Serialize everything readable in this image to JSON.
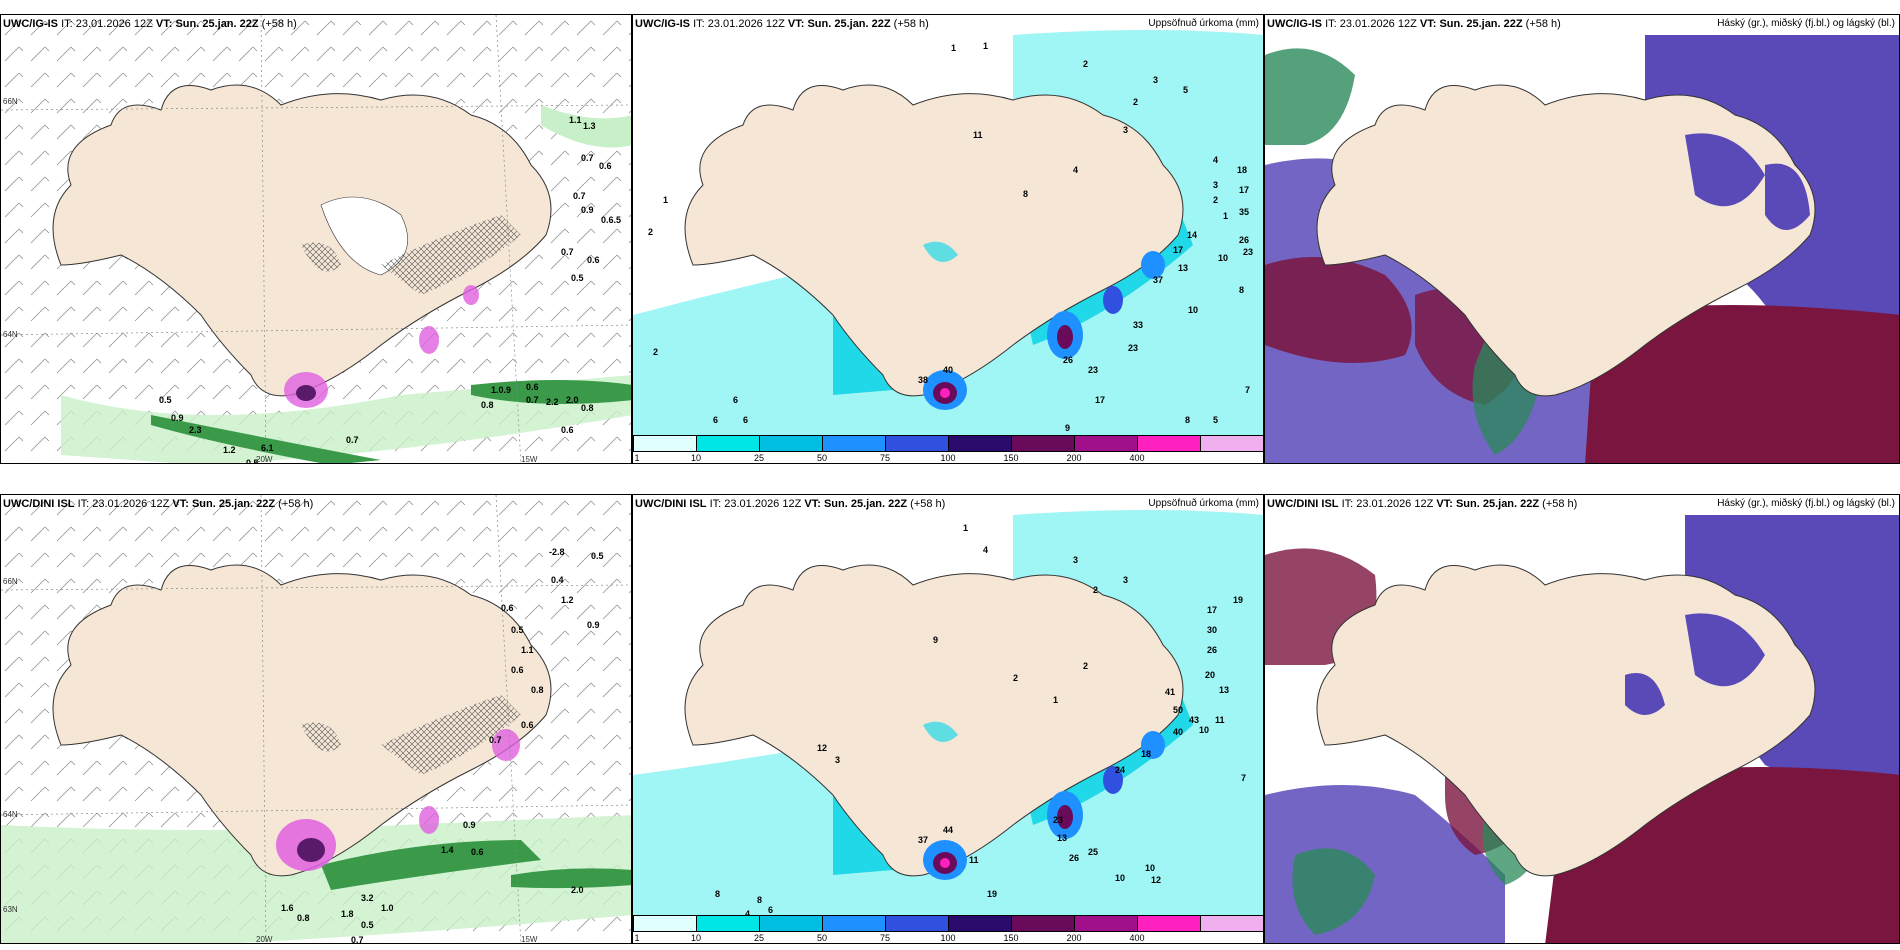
{
  "rows": [
    {
      "model": "UWC/IG-IS",
      "it_label": "IT:",
      "it_value": "23.01.2026 12Z",
      "vt_label": "VT:",
      "vt_value": "Sun. 25.jan. 22Z",
      "lead": "(+58 h)",
      "panel2_title": "Uppsöfnuð úrkoma (mm)",
      "panel3_title": "Háský (gr.), miðský (fj.bl.) og lágský (bl.)",
      "wind_values": [
        "1.1",
        "1.3",
        "0.7",
        "0.6",
        "0.7",
        "0.9",
        "0.6.5",
        "0.7",
        "0.6",
        "0.5",
        "0.5",
        "0.9",
        "2.3",
        "1.2",
        "6.1",
        "0.5",
        "0.7",
        "1.0.9",
        "0.6",
        "0.7",
        "2.2",
        "2.0",
        "0.8",
        "0.8",
        "0.6"
      ],
      "precip_values": [
        "1",
        "1",
        "2",
        "3",
        "5",
        "4",
        "3",
        "2",
        "1",
        "18",
        "17",
        "35",
        "26",
        "23",
        "14",
        "17",
        "23",
        "37",
        "13",
        "10",
        "10",
        "8",
        "33",
        "26",
        "23",
        "17",
        "9",
        "40",
        "38",
        "7",
        "5",
        "8",
        "6",
        "6",
        "6",
        "2",
        "1",
        "2",
        "11",
        "8",
        "4",
        "3",
        "2"
      ]
    },
    {
      "model": "UWC/DINI ISL",
      "it_label": "IT:",
      "it_value": "23.01.2026 12Z",
      "vt_label": "VT:",
      "vt_value": "Sun. 25.jan. 22Z",
      "lead": "(+58 h)",
      "panel2_title": "Uppsöfnuð úrkoma (mm)",
      "panel3_title": "Háský (gr.), miðský (fj.bl.) og lágský (bl.)",
      "wind_values": [
        "-2.8",
        "0.5",
        "0.4",
        "1.2",
        "0.9",
        "0.6",
        "0.5",
        "1.1",
        "0.6",
        "0.8",
        "0.6",
        "0.7",
        "0.9",
        "1.4",
        "0.6",
        "2.0",
        "1.8",
        "3.2",
        "1.0",
        "0.5",
        "0.7",
        "1.6",
        "0.8"
      ],
      "precip_values": [
        "1",
        "4",
        "3",
        "2",
        "3",
        "19",
        "17",
        "30",
        "26",
        "20",
        "13",
        "11",
        "10",
        "7",
        "41",
        "50",
        "43",
        "40",
        "18",
        "24",
        "23",
        "13",
        "25",
        "26",
        "10",
        "12",
        "10",
        "44",
        "37",
        "11",
        "19",
        "8",
        "8",
        "4",
        "6",
        "3",
        "12",
        "9",
        "2",
        "1",
        "2"
      ]
    }
  ],
  "axis_labels": {
    "lat66": "66N",
    "lat64": "64N",
    "lat63": "63N",
    "lon20": "20W",
    "lon15": "15W"
  },
  "colorbar": {
    "ticks": [
      "1",
      "10",
      "25",
      "50",
      "75",
      "100",
      "150",
      "200",
      "400"
    ],
    "colors": [
      "#e0ffff",
      "#00e5e5",
      "#00bfe0",
      "#1e90ff",
      "#3050e0",
      "#2a0a6a",
      "#6a0a5a",
      "#a0108a",
      "#ff20c0",
      "#f0b0f0"
    ]
  },
  "colors": {
    "land": "#f5e6d6",
    "precip_light": "#a0f5f5",
    "precip_mid": "#20d8e8",
    "wind_green": "#3a9a4a",
    "wind_pink": "#e060e0",
    "cloud_high": "#2a8a5a",
    "cloud_mid": "#5a4ab8",
    "cloud_low": "#7a1540"
  }
}
